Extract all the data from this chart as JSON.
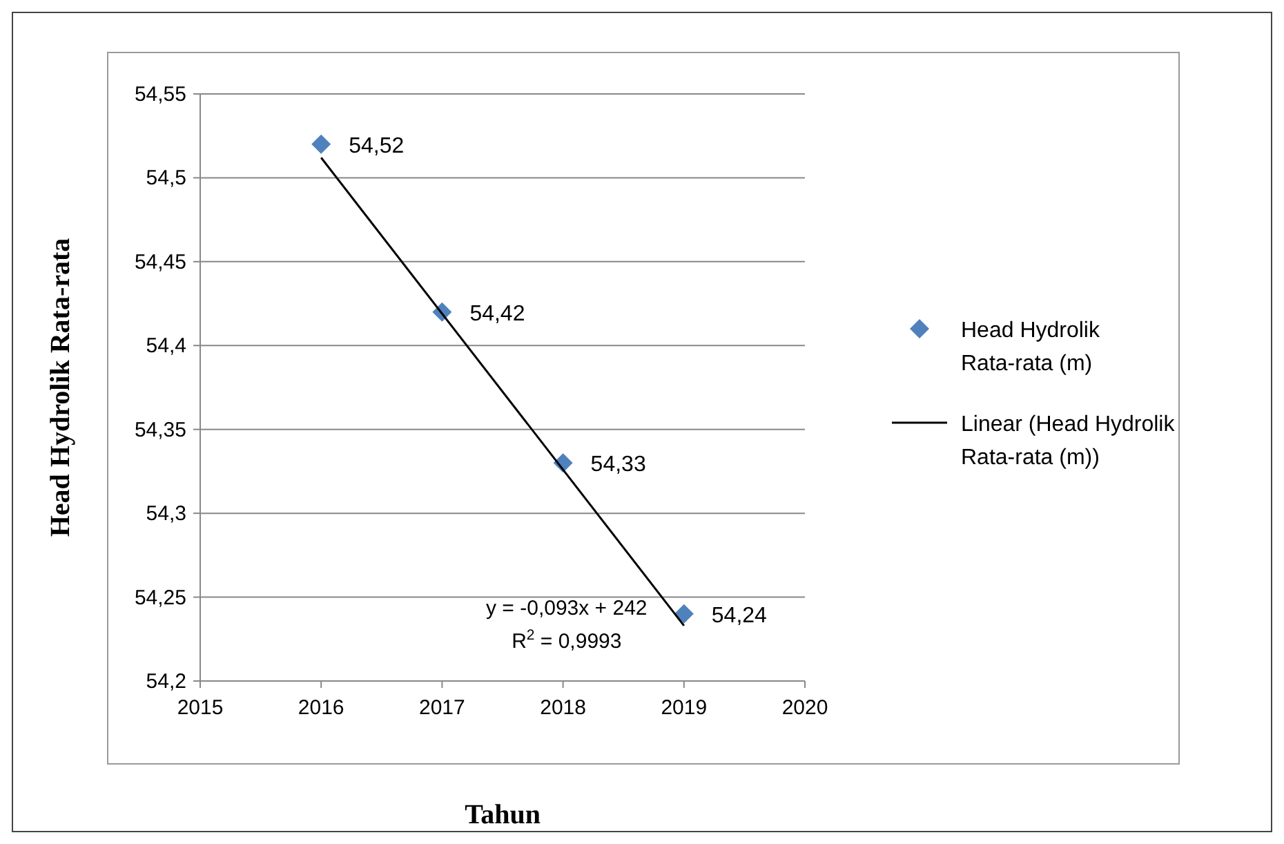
{
  "chart_data": {
    "type": "scatter",
    "xlabel": "Tahun",
    "ylabel": "Head Hydrolik Rata-rata",
    "xlim": [
      2015,
      2020
    ],
    "xticks": [
      2015,
      2016,
      2017,
      2018,
      2019,
      2020
    ],
    "ylim": [
      54.2,
      54.55
    ],
    "yticks": [
      {
        "value": 54.2,
        "label": "54,2"
      },
      {
        "value": 54.25,
        "label": "54,25"
      },
      {
        "value": 54.3,
        "label": "54,3"
      },
      {
        "value": 54.35,
        "label": "54,35"
      },
      {
        "value": 54.4,
        "label": "54,4"
      },
      {
        "value": 54.45,
        "label": "54,45"
      },
      {
        "value": 54.5,
        "label": "54,5"
      },
      {
        "value": 54.55,
        "label": "54,55"
      }
    ],
    "grid": "y",
    "legend": "right",
    "series": [
      {
        "name": "Head Hydrolik Rata-rata (m)",
        "color": "#4f81bd",
        "marker": "diamond",
        "x": [
          2016,
          2017,
          2018,
          2019
        ],
        "values": [
          54.52,
          54.42,
          54.33,
          54.24
        ],
        "value_labels": [
          "54,52",
          "54,42",
          "54,33",
          "54,24"
        ]
      },
      {
        "type": "line",
        "name": "Linear (Head Hydrolik Rata-rata (m))",
        "color": "#000000",
        "x": [
          2016,
          2019
        ],
        "values": [
          54.512,
          54.233
        ]
      }
    ],
    "annotations": [
      "y = -0,093x + 242",
      "R$^{2}$ = 0,9993"
    ]
  }
}
